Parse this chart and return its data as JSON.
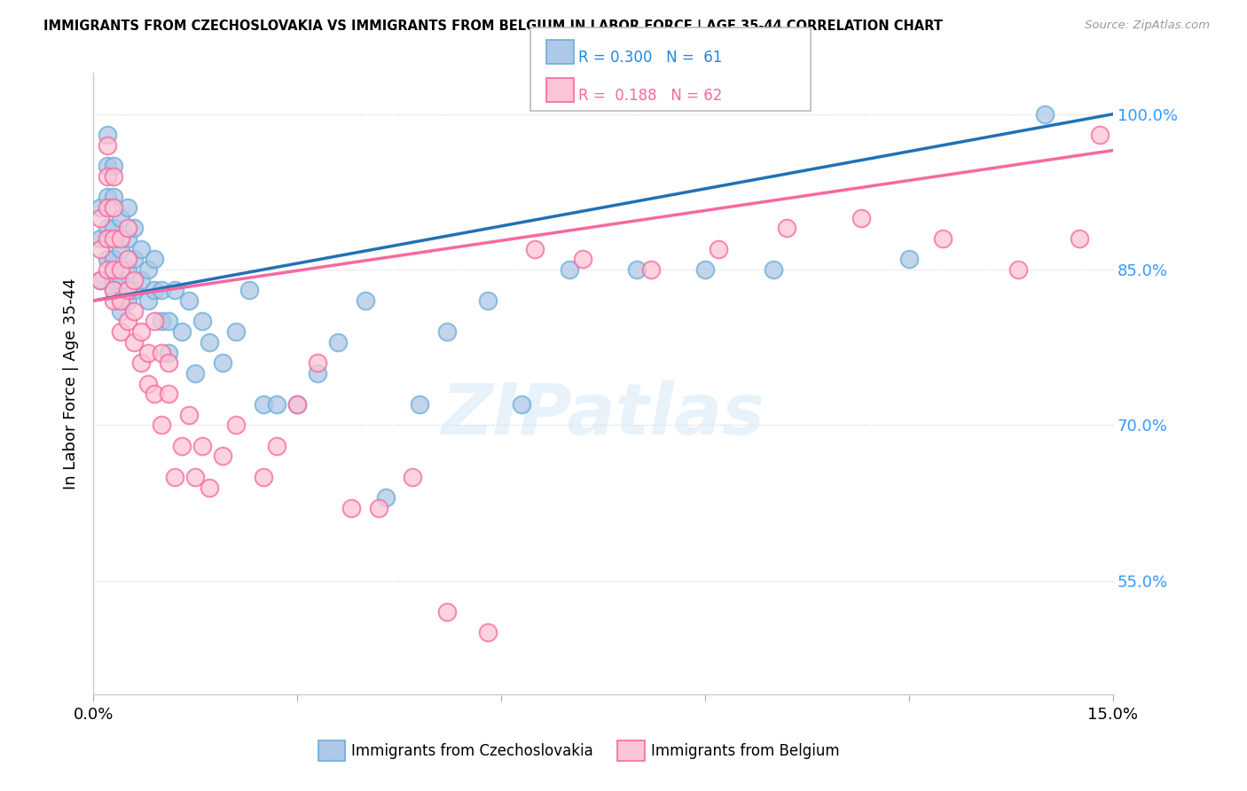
{
  "title": "IMMIGRANTS FROM CZECHOSLOVAKIA VS IMMIGRANTS FROM BELGIUM IN LABOR FORCE | AGE 35-44 CORRELATION CHART",
  "source": "Source: ZipAtlas.com",
  "ylabel": "In Labor Force | Age 35-44",
  "yticks": [
    "55.0%",
    "70.0%",
    "85.0%",
    "100.0%"
  ],
  "ytick_vals": [
    0.55,
    0.7,
    0.85,
    1.0
  ],
  "xmin": 0.0,
  "xmax": 0.15,
  "ymin": 0.44,
  "ymax": 1.04,
  "color_blue_fill": "#aec8e8",
  "color_blue_edge": "#6baed6",
  "color_pink_fill": "#fcc5d5",
  "color_pink_edge": "#f768a1",
  "color_blue_line": "#2171b5",
  "color_pink_line": "#f768a1",
  "watermark": "ZIPatlas",
  "blue_x": [
    0.001,
    0.001,
    0.001,
    0.002,
    0.002,
    0.002,
    0.002,
    0.002,
    0.003,
    0.003,
    0.003,
    0.003,
    0.003,
    0.003,
    0.004,
    0.004,
    0.004,
    0.004,
    0.005,
    0.005,
    0.005,
    0.005,
    0.006,
    0.006,
    0.006,
    0.007,
    0.007,
    0.008,
    0.008,
    0.009,
    0.009,
    0.01,
    0.01,
    0.011,
    0.011,
    0.012,
    0.013,
    0.014,
    0.015,
    0.016,
    0.017,
    0.019,
    0.021,
    0.023,
    0.025,
    0.027,
    0.03,
    0.033,
    0.036,
    0.04,
    0.043,
    0.048,
    0.052,
    0.058,
    0.063,
    0.07,
    0.08,
    0.09,
    0.1,
    0.12,
    0.14
  ],
  "blue_y": [
    0.88,
    0.84,
    0.91,
    0.86,
    0.89,
    0.92,
    0.95,
    0.98,
    0.83,
    0.86,
    0.89,
    0.92,
    0.95,
    0.84,
    0.81,
    0.84,
    0.87,
    0.9,
    0.82,
    0.85,
    0.88,
    0.91,
    0.83,
    0.86,
    0.89,
    0.84,
    0.87,
    0.82,
    0.85,
    0.83,
    0.86,
    0.8,
    0.83,
    0.77,
    0.8,
    0.83,
    0.79,
    0.82,
    0.75,
    0.8,
    0.78,
    0.76,
    0.79,
    0.83,
    0.72,
    0.72,
    0.72,
    0.75,
    0.78,
    0.82,
    0.63,
    0.72,
    0.79,
    0.82,
    0.72,
    0.85,
    0.85,
    0.85,
    0.85,
    0.86,
    1.0
  ],
  "pink_x": [
    0.001,
    0.001,
    0.001,
    0.002,
    0.002,
    0.002,
    0.002,
    0.002,
    0.003,
    0.003,
    0.003,
    0.003,
    0.003,
    0.003,
    0.004,
    0.004,
    0.004,
    0.004,
    0.005,
    0.005,
    0.005,
    0.005,
    0.006,
    0.006,
    0.006,
    0.007,
    0.007,
    0.008,
    0.008,
    0.009,
    0.009,
    0.01,
    0.01,
    0.011,
    0.011,
    0.012,
    0.013,
    0.014,
    0.015,
    0.016,
    0.017,
    0.019,
    0.021,
    0.025,
    0.027,
    0.03,
    0.033,
    0.038,
    0.042,
    0.047,
    0.052,
    0.058,
    0.065,
    0.072,
    0.082,
    0.092,
    0.102,
    0.113,
    0.125,
    0.136,
    0.145,
    0.148
  ],
  "pink_y": [
    0.87,
    0.9,
    0.84,
    0.85,
    0.88,
    0.91,
    0.94,
    0.97,
    0.82,
    0.85,
    0.88,
    0.91,
    0.94,
    0.83,
    0.79,
    0.82,
    0.85,
    0.88,
    0.8,
    0.83,
    0.86,
    0.89,
    0.84,
    0.78,
    0.81,
    0.76,
    0.79,
    0.74,
    0.77,
    0.8,
    0.73,
    0.77,
    0.7,
    0.73,
    0.76,
    0.65,
    0.68,
    0.71,
    0.65,
    0.68,
    0.64,
    0.67,
    0.7,
    0.65,
    0.68,
    0.72,
    0.76,
    0.62,
    0.62,
    0.65,
    0.52,
    0.5,
    0.87,
    0.86,
    0.85,
    0.87,
    0.89,
    0.9,
    0.88,
    0.85,
    0.88,
    0.98
  ]
}
